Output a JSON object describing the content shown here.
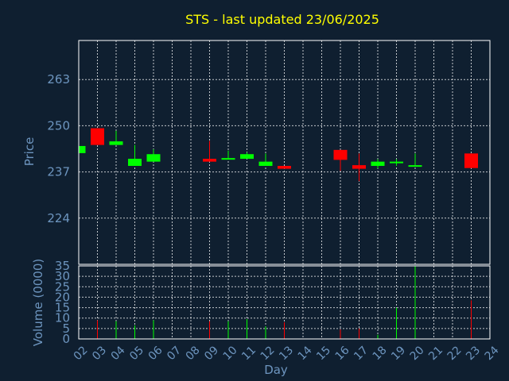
{
  "colors": {
    "background": "#0f1f30",
    "title": "#ffff00",
    "axis_text": "#6d95bf",
    "frame": "#ffffff",
    "grid": "#ffffff",
    "up": "#00ff00",
    "down": "#ff0000"
  },
  "chart_data": [
    {
      "type": "candlestick",
      "title": "STS - last updated 23/06/2025",
      "ylabel": "Price",
      "grid": true,
      "ylim": [
        211,
        274
      ],
      "yticks": [
        224,
        237,
        250,
        263
      ],
      "candles": [
        {
          "day": "02",
          "open": 242.3,
          "close": 244.3,
          "high": 244.3,
          "low": 242.3
        },
        {
          "day": "03",
          "open": 249.3,
          "close": 244.6,
          "high": 249.3,
          "low": 244.6
        },
        {
          "day": "04",
          "open": 244.6,
          "close": 245.6,
          "high": 248.6,
          "low": 244.6
        },
        {
          "day": "05",
          "open": 238.7,
          "close": 240.7,
          "high": 244.6,
          "low": 238.7
        },
        {
          "day": "06",
          "open": 239.9,
          "close": 242.0,
          "high": 243.4,
          "low": 239.9
        },
        {
          "day": "09",
          "open": 240.7,
          "close": 239.9,
          "high": 245.7,
          "low": 239.9
        },
        {
          "day": "10",
          "open": 240.5,
          "close": 240.9,
          "high": 243.0,
          "low": 240.5
        },
        {
          "day": "11",
          "open": 240.7,
          "close": 242.0,
          "high": 242.5,
          "low": 240.7
        },
        {
          "day": "12",
          "open": 238.7,
          "close": 239.9,
          "high": 242.2,
          "low": 238.7
        },
        {
          "day": "13",
          "open": 238.7,
          "close": 237.9,
          "high": 238.7,
          "low": 237.9
        },
        {
          "day": "16",
          "open": 243.2,
          "close": 240.4,
          "high": 243.2,
          "low": 237.3
        },
        {
          "day": "17",
          "open": 238.9,
          "close": 237.9,
          "high": 242.2,
          "low": 234.4
        },
        {
          "day": "18",
          "open": 238.7,
          "close": 239.9,
          "high": 240.6,
          "low": 238.0
        },
        {
          "day": "19",
          "open": 239.5,
          "close": 239.9,
          "high": 240.6,
          "low": 238.7
        },
        {
          "day": "20",
          "open": 238.6,
          "close": 238.9,
          "high": 242.2,
          "low": 238.6
        },
        {
          "day": "23",
          "open": 242.2,
          "close": 238.1,
          "high": 242.2,
          "low": 238.1
        }
      ]
    },
    {
      "type": "bar",
      "ylabel": "Volume (0000)",
      "xlabel": "Day",
      "grid": true,
      "ylim": [
        0,
        35
      ],
      "yticks": [
        0,
        5,
        10,
        15,
        20,
        25,
        30,
        35
      ],
      "categories": [
        "02",
        "03",
        "04",
        "05",
        "06",
        "07",
        "08",
        "09",
        "10",
        "11",
        "12",
        "13",
        "14",
        "15",
        "16",
        "17",
        "18",
        "19",
        "20",
        "21",
        "22",
        "23",
        "24"
      ],
      "values": [
        {
          "day": "03",
          "value": 9,
          "dir": "down"
        },
        {
          "day": "04",
          "value": 8.5,
          "dir": "up"
        },
        {
          "day": "05",
          "value": 6.5,
          "dir": "up"
        },
        {
          "day": "06",
          "value": 9,
          "dir": "up"
        },
        {
          "day": "09",
          "value": 8.5,
          "dir": "down"
        },
        {
          "day": "10",
          "value": 8.5,
          "dir": "up"
        },
        {
          "day": "11",
          "value": 9.5,
          "dir": "up"
        },
        {
          "day": "12",
          "value": 6,
          "dir": "up"
        },
        {
          "day": "13",
          "value": 8,
          "dir": "down"
        },
        {
          "day": "16",
          "value": 4.5,
          "dir": "down"
        },
        {
          "day": "17",
          "value": 5,
          "dir": "down"
        },
        {
          "day": "18",
          "value": 2,
          "dir": "up"
        },
        {
          "day": "19",
          "value": 15,
          "dir": "up"
        },
        {
          "day": "20",
          "value": 35,
          "dir": "up"
        },
        {
          "day": "23",
          "value": 18.5,
          "dir": "down"
        }
      ]
    }
  ]
}
